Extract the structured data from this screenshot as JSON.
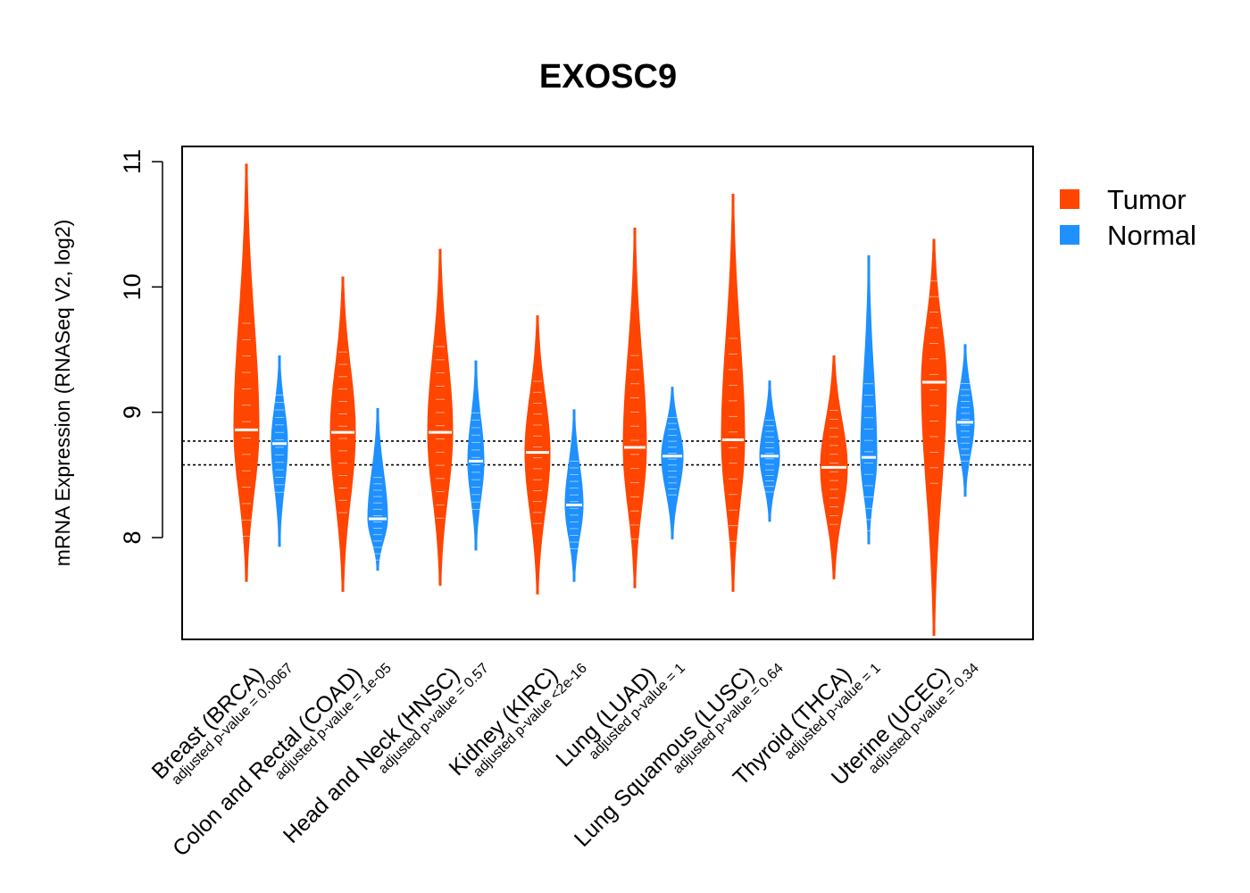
{
  "chart_data": {
    "type": "violin",
    "title": "EXOSC9",
    "ylabel": "mRNA Expression (RNASeq V2, log2)",
    "xlabel": "",
    "ylim": [
      7.3,
      11.1
    ],
    "yticks": [
      "8",
      "9",
      "10",
      "11"
    ],
    "reference_lines": [
      8.58,
      8.77
    ],
    "legend": {
      "position": "top-right",
      "entries": [
        {
          "name": "Tumor",
          "color": "#FF4500"
        },
        {
          "name": "Normal",
          "color": "#1E90FF"
        }
      ]
    },
    "categories": [
      {
        "label": "Breast (BRCA)",
        "pvalue": "adjusted p-value = 0.0067"
      },
      {
        "label": "Colon and Rectal (COAD)",
        "pvalue": "adjusted p-value = 1e-05"
      },
      {
        "label": "Head and Neck (HNSC)",
        "pvalue": "adjusted p-value = 0.57"
      },
      {
        "label": "Kidney (KIRC)",
        "pvalue": "adjusted p-value <2e-16"
      },
      {
        "label": "Lung (LUAD)",
        "pvalue": "adjusted p-value = 1"
      },
      {
        "label": "Lung Squamous (LUSC)",
        "pvalue": "adjusted p-value = 0.64"
      },
      {
        "label": "Thyroid (THCA)",
        "pvalue": "adjusted p-value = 1"
      },
      {
        "label": "Uterine (UCEC)",
        "pvalue": "adjusted p-value = 0.34"
      }
    ],
    "series": [
      {
        "name": "Tumor",
        "color": "#FF4500",
        "min": [
          7.65,
          7.57,
          7.62,
          7.55,
          7.6,
          7.57,
          7.67,
          7.22
        ],
        "max": [
          10.98,
          10.08,
          10.3,
          9.77,
          10.47,
          10.74,
          9.45,
          10.38
        ],
        "median": [
          8.86,
          8.84,
          8.84,
          8.68,
          8.72,
          8.78,
          8.56,
          9.24
        ]
      },
      {
        "name": "Normal",
        "color": "#1E90FF",
        "min": [
          7.93,
          7.74,
          7.9,
          7.65,
          7.99,
          8.13,
          7.95,
          8.33
        ],
        "max": [
          9.45,
          9.03,
          9.41,
          9.02,
          9.2,
          9.25,
          10.25,
          9.54
        ],
        "median": [
          8.75,
          8.15,
          8.61,
          8.26,
          8.65,
          8.65,
          8.64,
          8.92
        ]
      }
    ]
  }
}
